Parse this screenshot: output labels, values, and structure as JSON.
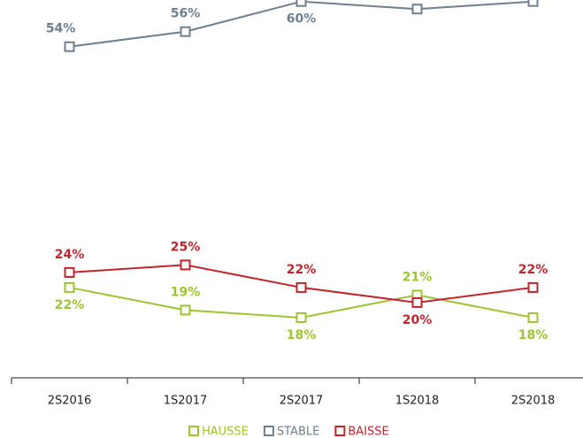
{
  "chart_data": {
    "type": "line",
    "categories": [
      "2S2016",
      "1S2017",
      "2S2017",
      "1S2018",
      "2S2018"
    ],
    "series": [
      {
        "name": "HAUSSE",
        "color": "#9dc431",
        "values": [
          22,
          19,
          18,
          21,
          18
        ],
        "value_labels": [
          "22%",
          "19%",
          "18%",
          "21%",
          "18%"
        ]
      },
      {
        "name": "STABLE",
        "color": "#6e7f8d",
        "values": [
          54,
          56,
          60,
          59,
          60
        ],
        "value_labels": [
          "54%",
          "56%",
          "60%",
          null,
          null
        ]
      },
      {
        "name": "BAISSE",
        "color": "#c0272d",
        "values": [
          24,
          25,
          22,
          20,
          22
        ],
        "value_labels": [
          "24%",
          "25%",
          "22%",
          "20%",
          "22%"
        ]
      }
    ],
    "ylim": [
      10,
      60.2
    ],
    "legend": "bottom"
  }
}
